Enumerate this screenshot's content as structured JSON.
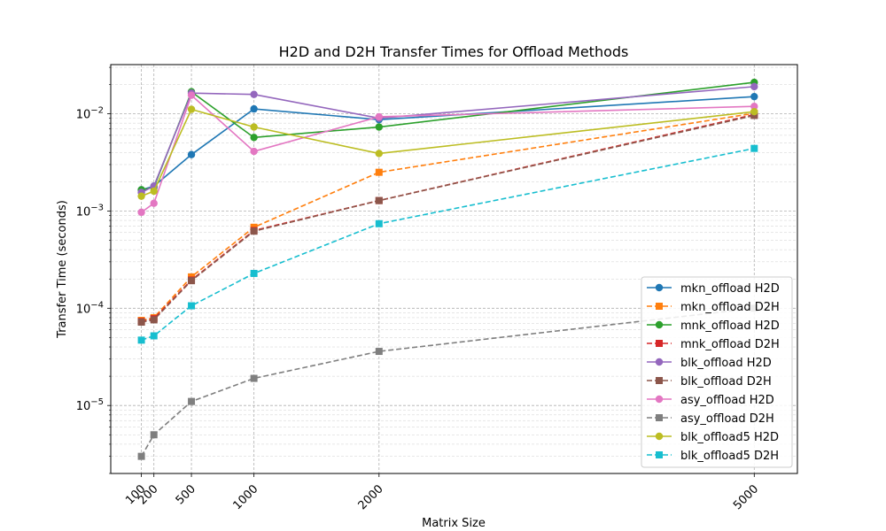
{
  "chart_data": {
    "type": "line",
    "title": "H2D and D2H Transfer Times for Offload Methods",
    "xlabel": "Matrix Size",
    "ylabel": "Transfer Time (seconds)",
    "xscale": "linear",
    "yscale": "log",
    "xlim": [
      -145,
      5345
    ],
    "ylim": [
      2e-06,
      0.032
    ],
    "x": [
      100,
      200,
      500,
      1000,
      2000,
      5000
    ],
    "xtick_labels": [
      "100",
      "200",
      "500",
      "1000",
      "2000",
      "5000"
    ],
    "yticks": [
      {
        "value": 1e-05,
        "base": "10",
        "exp": "−5"
      },
      {
        "value": 0.0001,
        "base": "10",
        "exp": "−4"
      },
      {
        "value": 0.001,
        "base": "10",
        "exp": "−3"
      },
      {
        "value": 0.01,
        "base": "10",
        "exp": "−2"
      }
    ],
    "grid": true,
    "legend_position": "lower right",
    "series": [
      {
        "name": "mkn_offload H2D",
        "color": "#1f77b4",
        "marker": "circle",
        "dashed": false,
        "values": [
          0.00165,
          0.0018,
          0.0038,
          0.0112,
          0.0087,
          0.015
        ]
      },
      {
        "name": "mkn_offload D2H",
        "color": "#ff7f0e",
        "marker": "square",
        "dashed": true,
        "values": [
          7.5e-05,
          8e-05,
          0.00021,
          0.00068,
          0.0025,
          0.0101
        ]
      },
      {
        "name": "mnk_offload H2D",
        "color": "#2ca02c",
        "marker": "circle",
        "dashed": false,
        "values": [
          0.00165,
          0.00175,
          0.0168,
          0.0057,
          0.0073,
          0.021
        ]
      },
      {
        "name": "mnk_offload D2H",
        "color": "#d62728",
        "marker": "square",
        "dashed": true,
        "values": [
          7.3e-05,
          7.8e-05,
          0.000195,
          0.00063,
          0.00128,
          0.0098
        ]
      },
      {
        "name": "blk_offload H2D",
        "color": "#9467bd",
        "marker": "circle",
        "dashed": false,
        "values": [
          0.00155,
          0.0018,
          0.0163,
          0.0158,
          0.009,
          0.019
        ]
      },
      {
        "name": "blk_offload D2H",
        "color": "#8c564b",
        "marker": "square",
        "dashed": true,
        "values": [
          7.2e-05,
          7.6e-05,
          0.000192,
          0.00062,
          0.00128,
          0.0096
        ]
      },
      {
        "name": "asy_offload H2D",
        "color": "#e377c2",
        "marker": "circle",
        "dashed": false,
        "values": [
          0.00097,
          0.0012,
          0.0155,
          0.0041,
          0.0093,
          0.0119
        ]
      },
      {
        "name": "asy_offload D2H",
        "color": "#7f7f7f",
        "marker": "square",
        "dashed": true,
        "values": [
          3e-06,
          5e-06,
          1.1e-05,
          1.9e-05,
          3.6e-05,
          0.0001
        ]
      },
      {
        "name": "blk_offload5 H2D",
        "color": "#bcbd22",
        "marker": "circle",
        "dashed": false,
        "values": [
          0.00142,
          0.0016,
          0.0111,
          0.0073,
          0.0039,
          0.0105
        ]
      },
      {
        "name": "blk_offload5 D2H",
        "color": "#17becf",
        "marker": "square",
        "dashed": true,
        "values": [
          4.7e-05,
          5.2e-05,
          0.000106,
          0.000228,
          0.00074,
          0.0044
        ]
      }
    ]
  }
}
